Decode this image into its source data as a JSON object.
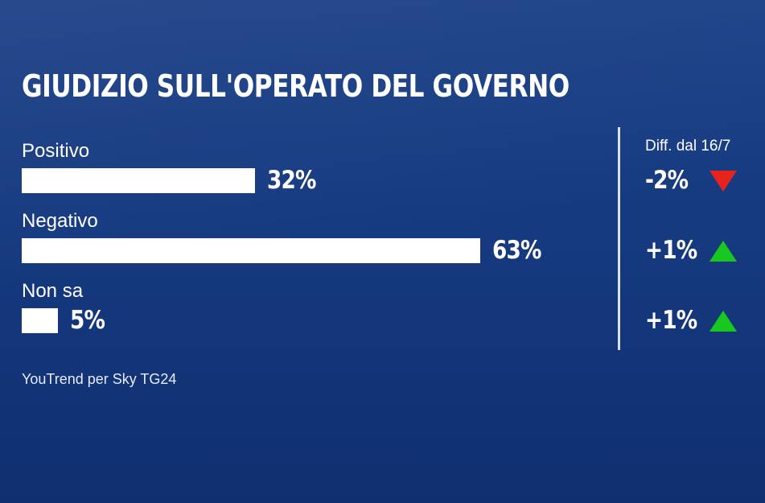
{
  "chart_data": {
    "type": "bar",
    "orientation": "horizontal",
    "title": "GIUDIZIO SULL'OPERATO DEL GOVERNO",
    "categories": [
      "Positivo",
      "Negativo",
      "Non sa"
    ],
    "values": [
      32,
      63,
      5
    ],
    "value_labels": [
      "32%",
      "63%",
      "5%"
    ],
    "unit": "%",
    "diff_header": "Diff. dal 16/7",
    "diffs": [
      {
        "label": "-2%",
        "value": -2,
        "direction": "down",
        "color": "#e8231e"
      },
      {
        "label": "+1%",
        "value": 1,
        "direction": "up",
        "color": "#19c81e"
      },
      {
        "label": "+1%",
        "value": 1,
        "direction": "up",
        "color": "#19c81e"
      }
    ],
    "source": "YouTrend per Sky TG24"
  },
  "colors": {
    "background": "#163a80",
    "bar": "#ffffff",
    "down": "#e8231e",
    "up": "#19c81e"
  }
}
